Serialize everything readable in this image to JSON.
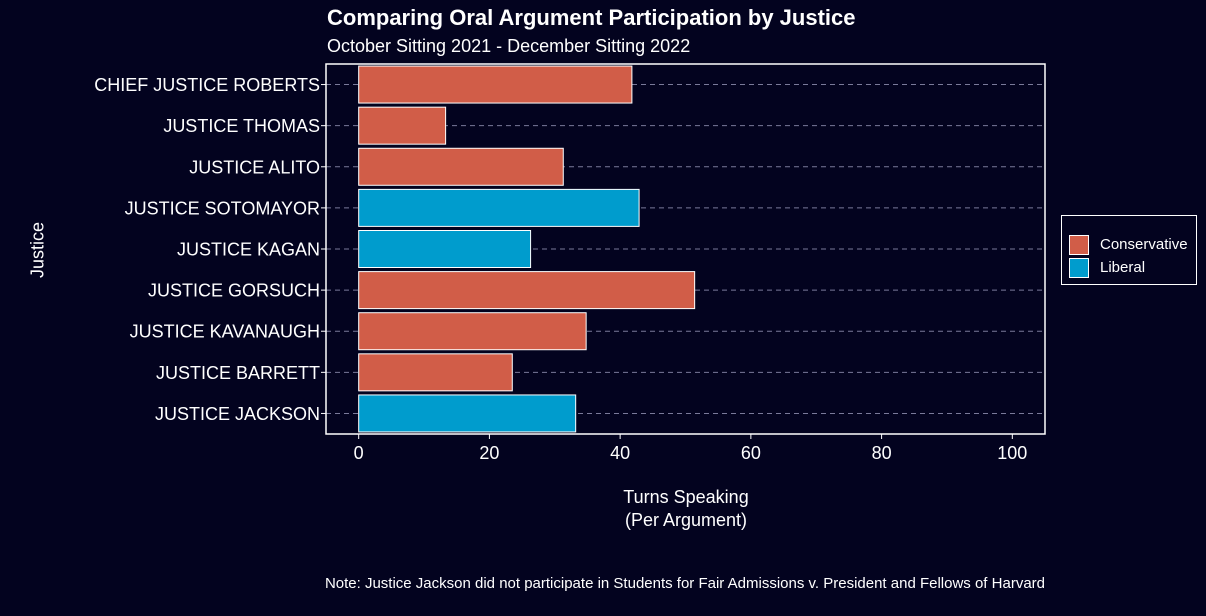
{
  "chart_data": {
    "type": "bar",
    "orientation": "horizontal",
    "title": "Comparing Oral Argument Participation by Justice",
    "subtitle": "October Sitting 2021 - December Sitting 2022",
    "xlabel_line1": "Turns Speaking",
    "xlabel_line2": "(Per Argument)",
    "ylabel": "Justice",
    "xlim": [
      -5,
      105
    ],
    "x_ticks": [
      0,
      20,
      40,
      60,
      80,
      100
    ],
    "grid": "horizontal dashed",
    "legend_position": "right",
    "categories": [
      "CHIEF JUSTICE ROBERTS",
      "JUSTICE THOMAS",
      "JUSTICE ALITO",
      "JUSTICE SOTOMAYOR",
      "JUSTICE KAGAN",
      "JUSTICE GORSUCH",
      "JUSTICE KAVANAUGH",
      "JUSTICE BARRETT",
      "JUSTICE JACKSON"
    ],
    "values": [
      41.8,
      13.3,
      31.3,
      42.9,
      26.3,
      51.4,
      34.8,
      23.5,
      33.2
    ],
    "groups": [
      "Conservative",
      "Conservative",
      "Conservative",
      "Liberal",
      "Liberal",
      "Conservative",
      "Conservative",
      "Conservative",
      "Liberal"
    ],
    "legend": [
      {
        "name": "Conservative",
        "color": "#d15d48"
      },
      {
        "name": "Liberal",
        "color": "#009ccd"
      }
    ],
    "note": "Note: Justice Jackson did not participate in Students for Fair Admissions v. President and Fellows of Harvard"
  },
  "colors": {
    "background": "#03031f",
    "conservative": "#d15d48",
    "liberal": "#009ccd",
    "gridline": "#7a7a9a"
  }
}
